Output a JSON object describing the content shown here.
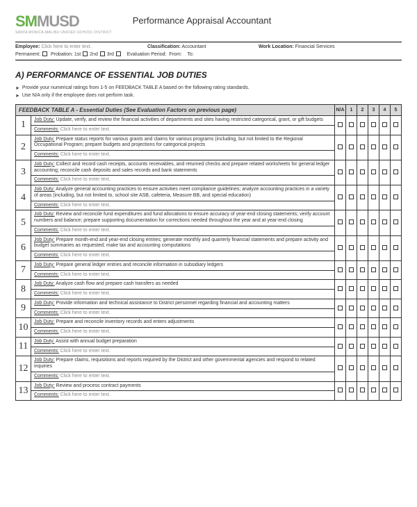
{
  "logo": {
    "part1": "SM",
    "part2": "MUSD",
    "sub": "SANTA MONICA-MALIBU UNIFIED SCHOOL DISTRICT"
  },
  "doc_title": "Performance Appraisal Accountant",
  "meta": {
    "employee_label": "Employee:",
    "employee_ph": "Click here to enter text.",
    "classification_label": "Classification:",
    "classification_value": "Accountant",
    "work_loc_label": "Work Location:",
    "work_loc_value": "Financial Services",
    "permanent_label": "Permanent:",
    "probation_label": "Probation:",
    "p1": "1st",
    "p2": "2nd",
    "p3": "3rd",
    "eval_period_label": "Evaluation Period:",
    "from_label": "From:",
    "to_label": "To:"
  },
  "section_a_title": "A) PERFORMANCE OF ESSENTIAL JOB DUTIES",
  "bullets": [
    "Provide your numerical ratings from 1-5 on FEEDBACK TABLE A based on the following rating standards.",
    "Use N/A only if the employee does not perform task."
  ],
  "table": {
    "header_main": "FEEDBACK TABLE A - Essential Duties (See Evaluation Factors on previous page)",
    "rating_cols": [
      "N/A",
      "1",
      "2",
      "3",
      "4",
      "5"
    ],
    "duty_label": "Job Duty:",
    "comments_label": "Comments:",
    "comments_ph": "Click here to enter text.",
    "rows": [
      {
        "n": "1",
        "duty": "Update, verify, and review the financial activities of departments and sites having restricted categorical, grant, or gift budgets"
      },
      {
        "n": "2",
        "duty": "Prepare status reports for various grants and claims for various programs (including, but not limited to the Regional Occupational Program; prepare budgets and projections for categorical projects"
      },
      {
        "n": "3",
        "duty": "Collect and record cash receipts, accounts receivables, and returned checks and prepare related worksheets for general ledger accounting; reconcile cash deposits and sales records and bank statements"
      },
      {
        "n": "4",
        "duty": "Analyze general accounting practices to ensure activities meet compliance guidelines; analyze accounting practices in a variety of areas (including, but not limited to, school site ASB, cafeteria, Measure BB, and special education)"
      },
      {
        "n": "5",
        "duty": "Review and reconcile fund expenditures and fund allocations to ensure accuracy of year-end closing statements; verify account numbers and balance; prepare supporting documentation for corrections needed throughout the year and at year-end closing"
      },
      {
        "n": "6",
        "duty": "Prepare month-end and year-end closing entries; generate monthly and quarterly financial statements and prepare activity and budget summaries as requested; make tax and accounting computations"
      },
      {
        "n": "7",
        "duty": "Prepare general ledger entries and reconcile information in subsidiary ledgers"
      },
      {
        "n": "8",
        "duty": "Analyze cash flow and prepare cash transfers as needed"
      },
      {
        "n": "9",
        "duty": "Provide information and technical assistance to District personnel regarding financial and accounting matters"
      },
      {
        "n": "10",
        "duty": "Prepare and reconcile inventory records and enters adjustments"
      },
      {
        "n": "11",
        "duty": "Assist with annual budget preparation"
      },
      {
        "n": "12",
        "duty": "Prepare claims, requisitions and reports required by the District and other governmental agencies and respond to related inquiries"
      },
      {
        "n": "13",
        "duty": "Review and process contract payments"
      }
    ]
  }
}
